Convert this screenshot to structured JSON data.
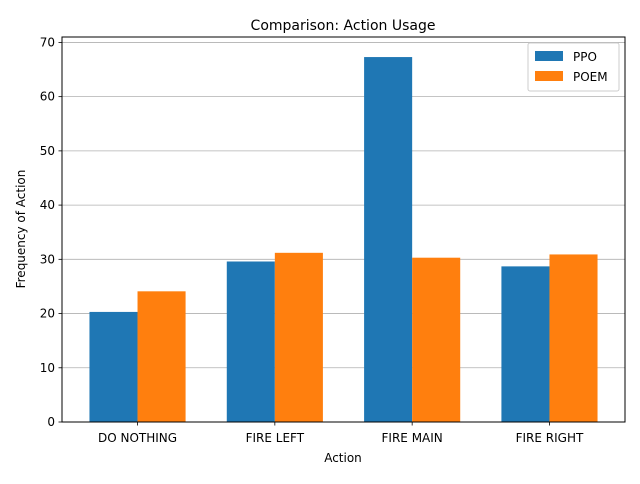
{
  "chart_data": {
    "type": "bar",
    "title": "Comparison: Action Usage",
    "xlabel": "Action",
    "ylabel": "Frequency of Action",
    "categories": [
      "DO NOTHING",
      "FIRE LEFT",
      "FIRE MAIN",
      "FIRE RIGHT"
    ],
    "series": [
      {
        "name": "PPO",
        "values": [
          20.3,
          29.6,
          67.3,
          28.7
        ],
        "color": "#1f77b4"
      },
      {
        "name": "POEM",
        "values": [
          24.1,
          31.2,
          30.3,
          30.9
        ],
        "color": "#ff7f0e"
      }
    ],
    "ylim": [
      0,
      71
    ],
    "yticks": [
      0,
      10,
      20,
      30,
      40,
      50,
      60,
      70
    ],
    "grid": "horizontal",
    "legend_position": "top-right"
  }
}
